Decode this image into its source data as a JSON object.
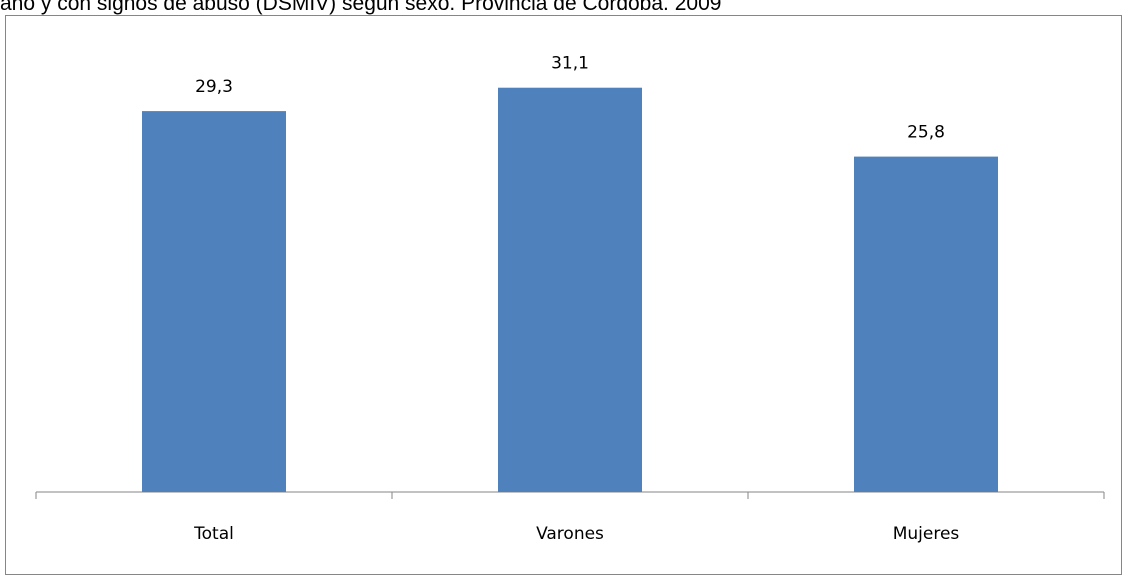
{
  "chart_data": {
    "type": "bar",
    "title": "año y con signos de abuso (DSMIV) según sexo. Provincia de Córdoba. 2009",
    "categories": [
      "Total",
      "Varones",
      "Mujeres"
    ],
    "values": [
      29.3,
      31.1,
      25.8
    ],
    "value_labels": [
      "29,3",
      "31,1",
      "25,8"
    ],
    "ylim": [
      0,
      35
    ],
    "bar_color": "#4f81bd",
    "grid": false,
    "legend": "none"
  }
}
